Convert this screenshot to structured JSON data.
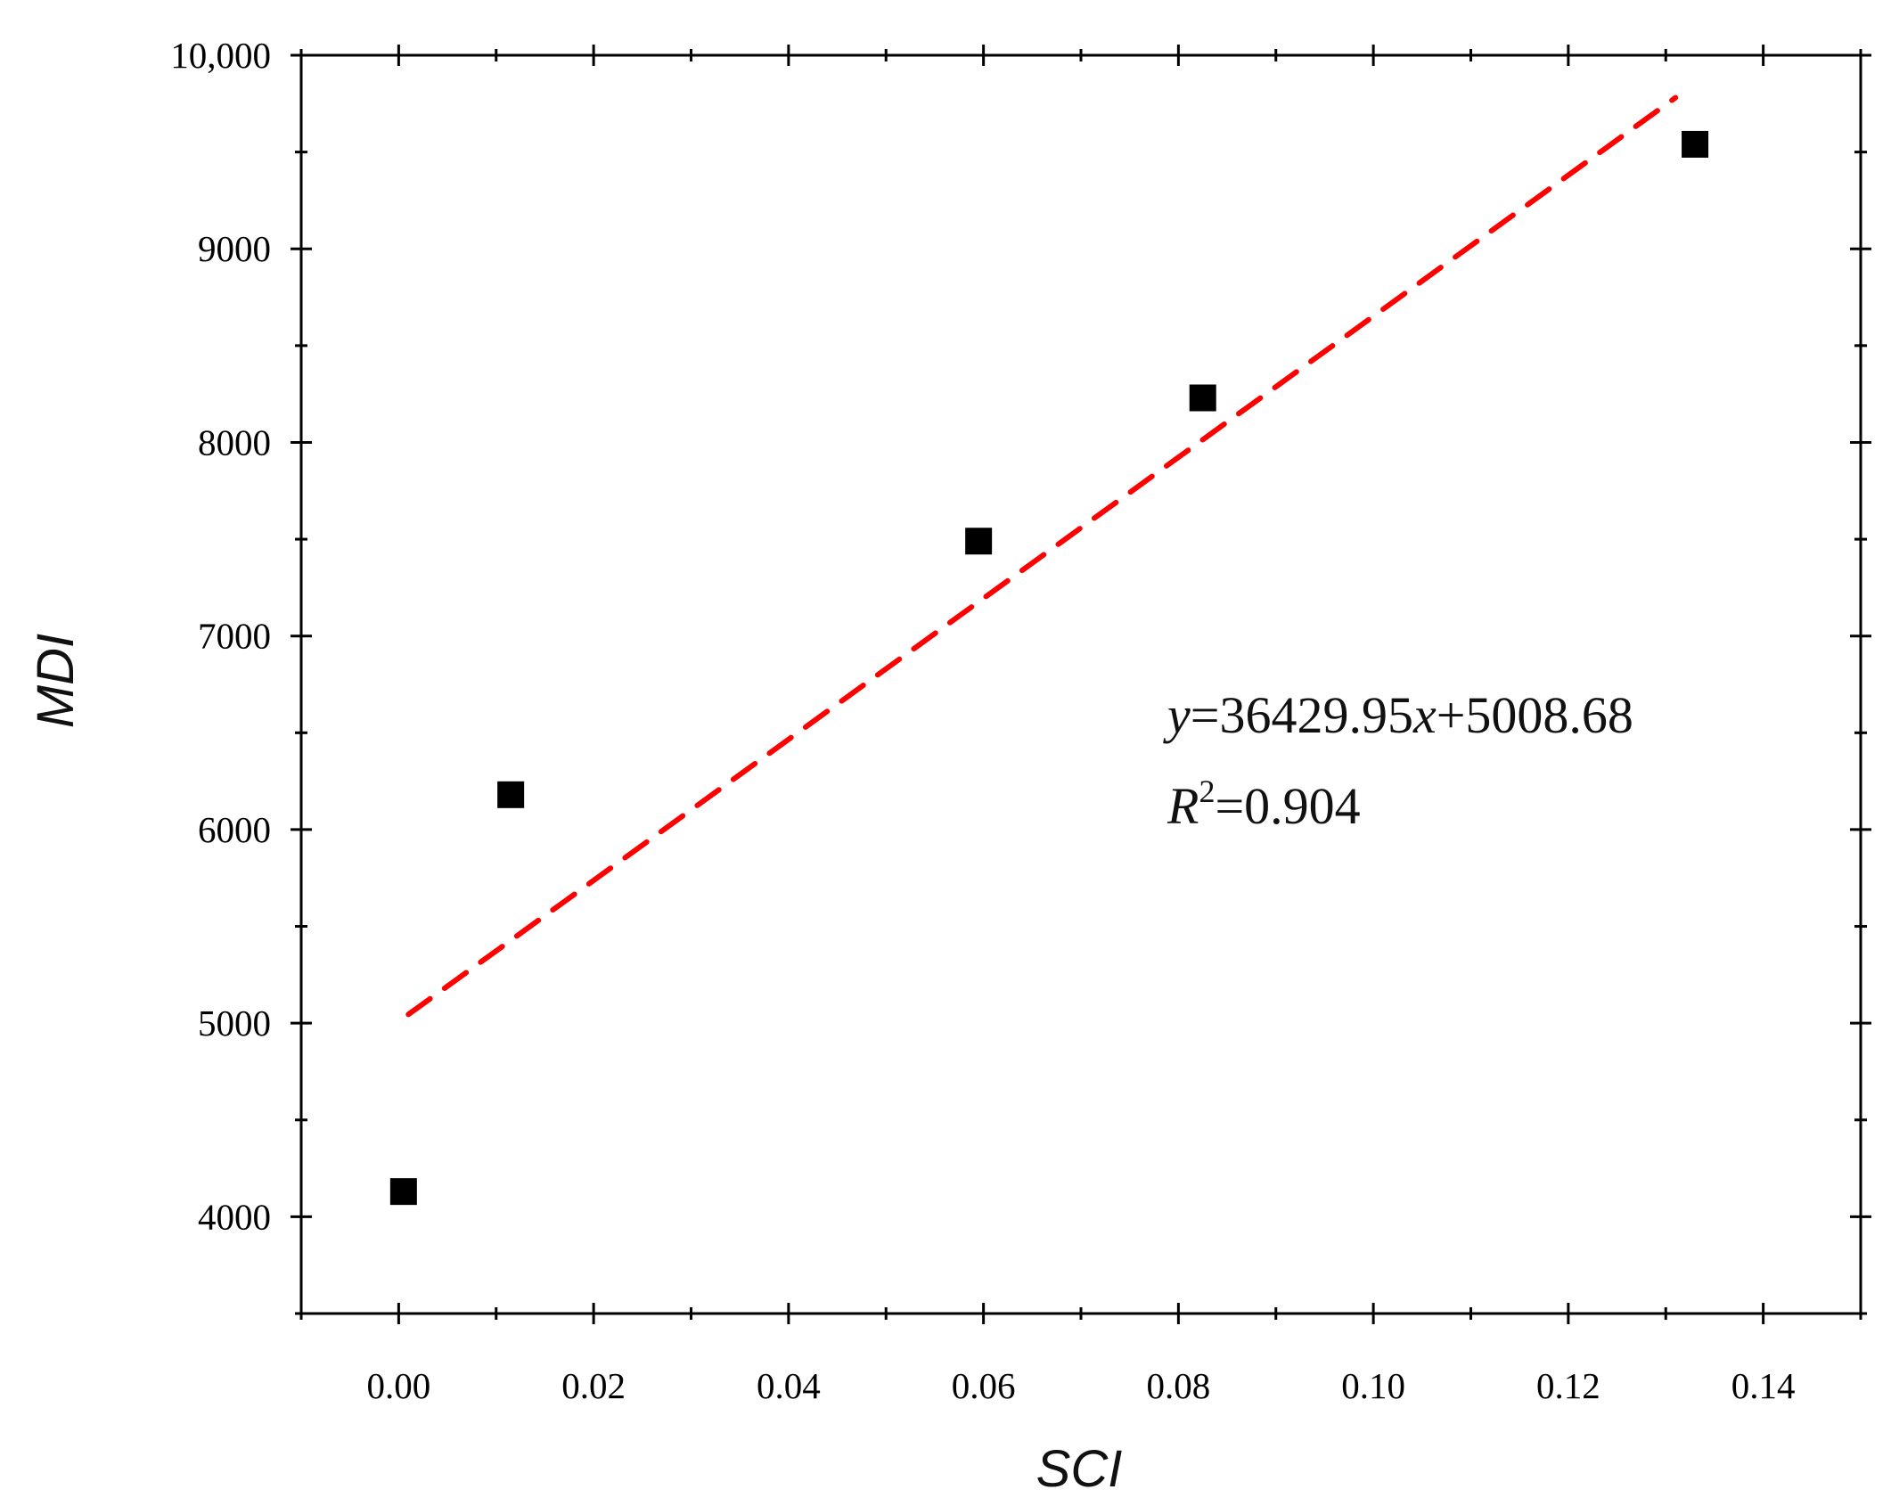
{
  "chart_data": {
    "type": "scatter",
    "title": "",
    "xlabel": "SCI",
    "ylabel": "MDI",
    "xlim": [
      -0.01,
      0.15
    ],
    "ylim": [
      3500,
      10000
    ],
    "x_ticks": [
      0.0,
      0.02,
      0.04,
      0.06,
      0.08,
      0.1,
      0.12,
      0.14
    ],
    "x_tick_labels": [
      "0.00",
      "0.02",
      "0.04",
      "0.06",
      "0.08",
      "0.10",
      "0.12",
      "0.14"
    ],
    "y_ticks": [
      4000,
      5000,
      6000,
      7000,
      8000,
      9000,
      10000
    ],
    "y_tick_labels": [
      "4000",
      "5000",
      "6000",
      "7000",
      "8000",
      "9000",
      "10,000"
    ],
    "grid": false,
    "series": [
      {
        "marker": "square",
        "color": "#000000",
        "points": [
          {
            "x": 0.0005,
            "y": 4130
          },
          {
            "x": 0.0115,
            "y": 6180
          },
          {
            "x": 0.0595,
            "y": 7490
          },
          {
            "x": 0.0825,
            "y": 8230
          },
          {
            "x": 0.133,
            "y": 9540
          }
        ]
      }
    ],
    "trendline": {
      "type": "linear",
      "slope": 36429.95,
      "intercept": 5008.68,
      "x_range": [
        0.001,
        0.131
      ],
      "color": "#ff0000",
      "style": "dashed"
    },
    "annotation": {
      "equation": {
        "y": "y",
        "eq": "=36429.95",
        "x": "x",
        "rest": "+5008.68"
      },
      "r2": {
        "R": "R",
        "sup": "2",
        "rest": "=0.904"
      }
    }
  }
}
